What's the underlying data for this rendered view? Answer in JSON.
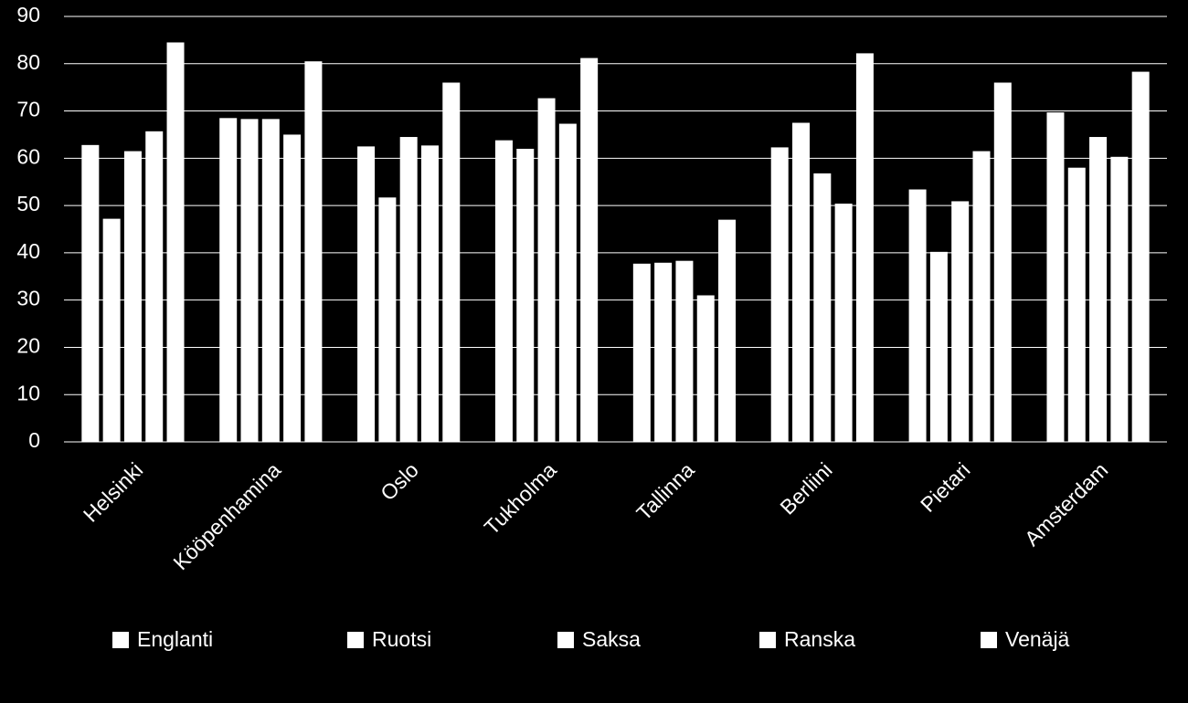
{
  "chart_data": {
    "type": "bar",
    "categories": [
      "Helsinki",
      "Kööpenhamina",
      "Oslo",
      "Tukholma",
      "Tallinna",
      "Berliini",
      "Pietari",
      "Amsterdam"
    ],
    "series": [
      {
        "name": "Englanti",
        "color": "#ffffff",
        "values": [
          62.8,
          68.5,
          62.5,
          63.8,
          37.7,
          62.3,
          53.4,
          69.7
        ]
      },
      {
        "name": "Ruotsi",
        "color": "#ffffff",
        "values": [
          47.2,
          68.3,
          51.7,
          62.0,
          37.9,
          67.5,
          40.2,
          58.0
        ]
      },
      {
        "name": "Saksa",
        "color": "#ffffff",
        "values": [
          61.5,
          68.3,
          64.5,
          72.7,
          38.3,
          56.8,
          50.9,
          64.5
        ]
      },
      {
        "name": "Ranska",
        "color": "#ffffff",
        "values": [
          65.7,
          65.0,
          62.7,
          67.3,
          31.0,
          50.4,
          61.5,
          60.3
        ]
      },
      {
        "name": "Venäjä",
        "color": "#ffffff",
        "values": [
          84.5,
          80.5,
          76.0,
          81.2,
          47.0,
          82.2,
          76.0,
          78.3
        ]
      }
    ],
    "ylim": [
      0,
      90
    ],
    "yticks": [
      0,
      10,
      20,
      30,
      40,
      50,
      60,
      70,
      80,
      90
    ],
    "grid": true,
    "legend": "bottom"
  }
}
